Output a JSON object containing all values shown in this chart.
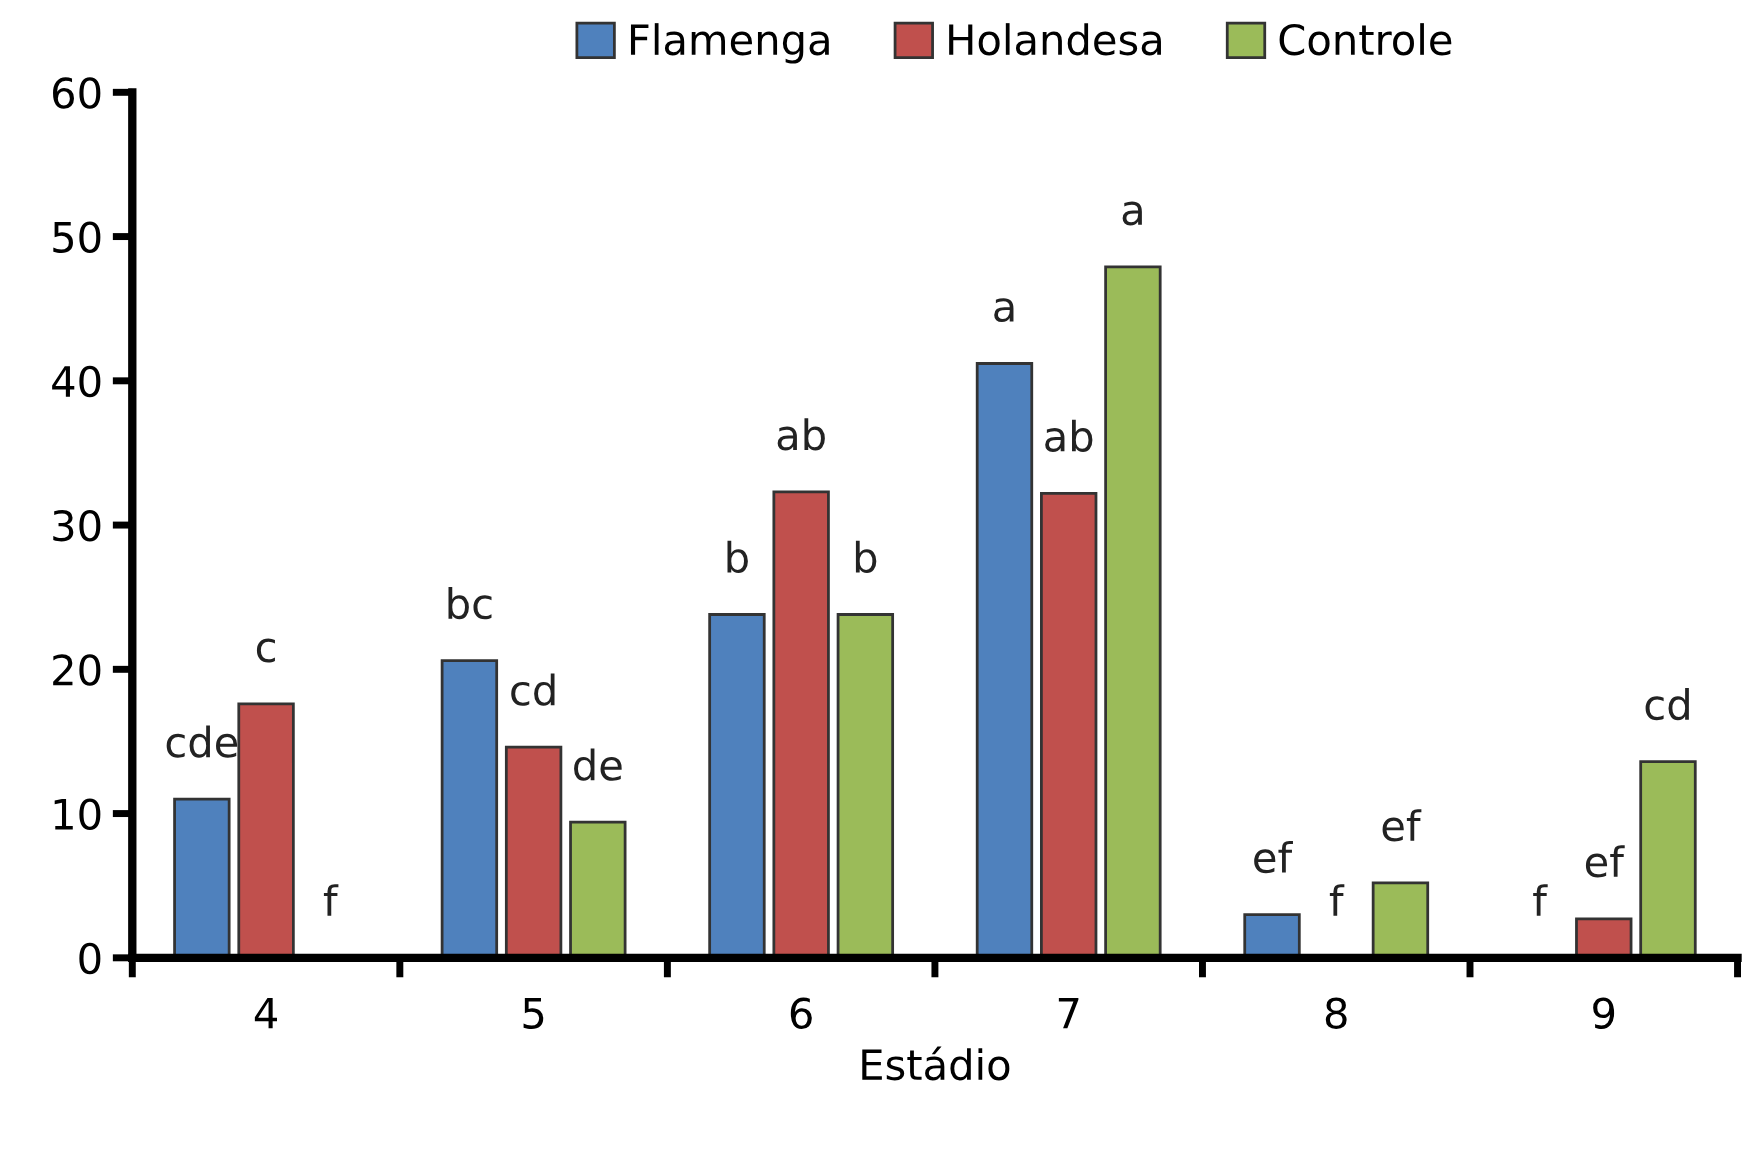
{
  "chart_data": {
    "type": "bar",
    "xlabel": "Estádio",
    "categories": [
      "4",
      "5",
      "6",
      "7",
      "8",
      "9"
    ],
    "series": [
      {
        "name": "Flamenga",
        "color": "#4f81bd",
        "values": [
          11.0,
          20.6,
          23.8,
          41.2,
          3.0,
          0
        ],
        "value_labels": [
          "cde",
          "bc",
          "b",
          "a",
          "ef",
          "f"
        ]
      },
      {
        "name": "Holandesa",
        "color": "#c0504d",
        "values": [
          17.6,
          14.6,
          32.3,
          32.2,
          0,
          2.7
        ],
        "value_labels": [
          "c",
          "cd",
          "ab",
          "ab",
          "f",
          "ef"
        ]
      },
      {
        "name": "Controle",
        "color": "#9bbb59",
        "values": [
          0,
          9.4,
          23.8,
          47.9,
          5.2,
          13.6
        ],
        "value_labels": [
          "f",
          "de",
          "b",
          "a",
          "ef",
          "cd"
        ]
      }
    ],
    "ylim": [
      0,
      60
    ],
    "yticks": [
      0,
      10,
      20,
      30,
      40,
      50,
      60
    ],
    "grid": false,
    "legend": "top"
  }
}
